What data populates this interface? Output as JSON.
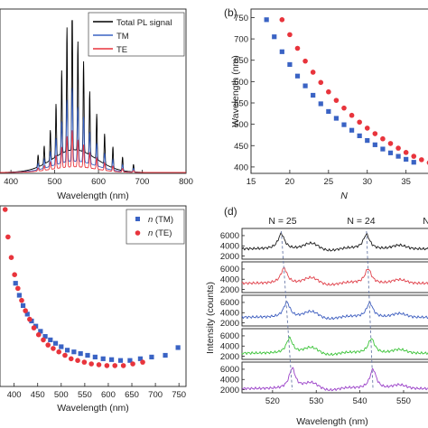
{
  "chart_data": [
    {
      "panel": "a",
      "type": "line",
      "xlabel": "Wavelength (nm)",
      "xticks": [
        400,
        500,
        600,
        700,
        800
      ],
      "xlim": [
        375,
        800
      ],
      "ylim": [
        0,
        1
      ],
      "legend_position": "top-right",
      "series": [
        {
          "name": "Total PL signal",
          "color": "#000000",
          "base_amp": 0.32
        },
        {
          "name": "TM",
          "color": "#3a63c4",
          "base_amp": 0.16
        },
        {
          "name": "TE",
          "color": "#e8343c",
          "base_amp": 0.08
        }
      ],
      "peaks": [
        {
          "x": 462,
          "h": 0.08
        },
        {
          "x": 476,
          "h": 0.12
        },
        {
          "x": 490,
          "h": 0.2
        },
        {
          "x": 503,
          "h": 0.35
        },
        {
          "x": 516,
          "h": 0.55
        },
        {
          "x": 528,
          "h": 0.82
        },
        {
          "x": 540,
          "h": 0.97
        },
        {
          "x": 553,
          "h": 0.72
        },
        {
          "x": 566,
          "h": 0.6
        },
        {
          "x": 580,
          "h": 0.42
        },
        {
          "x": 596,
          "h": 0.3
        },
        {
          "x": 614,
          "h": 0.2
        },
        {
          "x": 633,
          "h": 0.14
        },
        {
          "x": 655,
          "h": 0.09
        },
        {
          "x": 680,
          "h": 0.05
        }
      ]
    },
    {
      "panel": "b",
      "type": "scatter",
      "label": "(b)",
      "xlabel": "N",
      "ylabel": "Wavelength (nm)",
      "xticks": [
        15,
        20,
        25,
        30,
        35
      ],
      "yticks": [
        400,
        450,
        500,
        550,
        600,
        650,
        700,
        750
      ],
      "xlim": [
        15,
        39
      ],
      "ylim": [
        385,
        770
      ],
      "series": [
        {
          "name": "TM",
          "color": "#3a63c4",
          "marker": "square",
          "x": [
            17,
            18,
            19,
            20,
            21,
            22,
            23,
            24,
            25,
            26,
            27,
            28,
            29,
            30,
            31,
            32,
            33,
            34,
            35,
            36
          ],
          "y": [
            745,
            705,
            670,
            640,
            613,
            590,
            568,
            548,
            530,
            514,
            499,
            486,
            473,
            462,
            452,
            442,
            433,
            425,
            418,
            411
          ]
        },
        {
          "name": "TE",
          "color": "#e8343c",
          "marker": "circle",
          "x": [
            19,
            20,
            21,
            22,
            23,
            24,
            25,
            26,
            27,
            28,
            29,
            30,
            31,
            32,
            33,
            34,
            35,
            36,
            37,
            38
          ],
          "y": [
            745,
            710,
            678,
            648,
            622,
            598,
            576,
            556,
            538,
            521,
            505,
            491,
            478,
            466,
            455,
            444,
            434,
            425,
            417,
            410
          ]
        }
      ]
    },
    {
      "panel": "c",
      "type": "scatter",
      "xlabel": "Wavelength (nm)",
      "xticks": [
        400,
        450,
        500,
        550,
        600,
        650,
        700,
        750
      ],
      "xlim": [
        370,
        765
      ],
      "ylim": [
        0,
        1
      ],
      "legend_position": "top-right",
      "series": [
        {
          "name": "n (TM)",
          "legend_symbol": "n",
          "legend_suffix": " (TM)",
          "color": "#3a63c4",
          "marker": "square",
          "x": [
            403,
            411,
            419,
            428,
            437,
            446,
            456,
            466,
            477,
            488,
            500,
            513,
            527,
            541,
            556,
            572,
            589,
            607,
            626,
            646,
            668,
            692,
            721,
            748
          ],
          "y": [
            0.57,
            0.5,
            0.44,
            0.39,
            0.35,
            0.32,
            0.29,
            0.26,
            0.24,
            0.22,
            0.2,
            0.18,
            0.17,
            0.16,
            0.15,
            0.14,
            0.13,
            0.125,
            0.12,
            0.12,
            0.13,
            0.14,
            0.15,
            0.195
          ]
        },
        {
          "name": "n (TE)",
          "legend_symbol": "n",
          "legend_suffix": " (TE)",
          "color": "#e8343c",
          "marker": "circle",
          "x": [
            381,
            387,
            394,
            401,
            408,
            416,
            424,
            433,
            442,
            452,
            462,
            472,
            483,
            495,
            508,
            521,
            535,
            549,
            564,
            580,
            597,
            614,
            632,
            652,
            673
          ],
          "y": [
            1.0,
            0.84,
            0.72,
            0.62,
            0.54,
            0.47,
            0.41,
            0.36,
            0.31,
            0.27,
            0.24,
            0.21,
            0.19,
            0.17,
            0.15,
            0.13,
            0.12,
            0.11,
            0.1,
            0.095,
            0.09,
            0.09,
            0.09,
            0.1,
            0.11
          ]
        }
      ]
    },
    {
      "panel": "d",
      "type": "line",
      "label": "(d)",
      "xlabel": "Wavelength (nm)",
      "ylabel": "Intensity (counts)",
      "xticks": [
        520,
        530,
        540,
        550
      ],
      "xtick_labels": [
        "520",
        "530",
        "540",
        "550"
      ],
      "xlim": [
        513,
        556
      ],
      "ylim": [
        1400,
        7400
      ],
      "yticks": [
        2000,
        4000,
        6000
      ],
      "top_labels": [
        {
          "text": "N = 25",
          "x": 522.0
        },
        {
          "text": "N = 24",
          "x": 541.0
        },
        {
          "text": "N",
          "x": 556.5
        }
      ],
      "peak_top_x": [
        522.0,
        541.5
      ],
      "peak_bottom_x": [
        524.5,
        543.0
      ],
      "series": [
        {
          "color": "#1a1a1a",
          "base": 3400,
          "amp": 3000
        },
        {
          "color": "#e0404a",
          "base": 3200,
          "amp": 3000
        },
        {
          "color": "#3f5fc0",
          "base": 3100,
          "amp": 3000
        },
        {
          "color": "#3dc43a",
          "base": 2600,
          "amp": 3000
        },
        {
          "color": "#9a40c8",
          "base": 2200,
          "amp": 4000
        }
      ]
    }
  ],
  "labels": {
    "a_xlabel": "Wavelength (nm)",
    "a_legend_total": "Total PL signal",
    "a_legend_tm": "TM",
    "a_legend_te": "TE",
    "b_label": "(b)",
    "b_xlabel": "N",
    "b_ylabel": "Wavelength (nm)",
    "c_xlabel": "Wavelength (nm)",
    "c_legend_tm_sym": "n",
    "c_legend_tm_rest": " (TM)",
    "c_legend_te_sym": "n",
    "c_legend_te_rest": " (TE)",
    "d_label": "(d)",
    "d_xlabel": "Wavelength (nm)",
    "d_ylabel": "Intensity (counts)",
    "d_top_n25": "N = 25",
    "d_top_n24": "N = 24",
    "d_top_n": "N"
  }
}
